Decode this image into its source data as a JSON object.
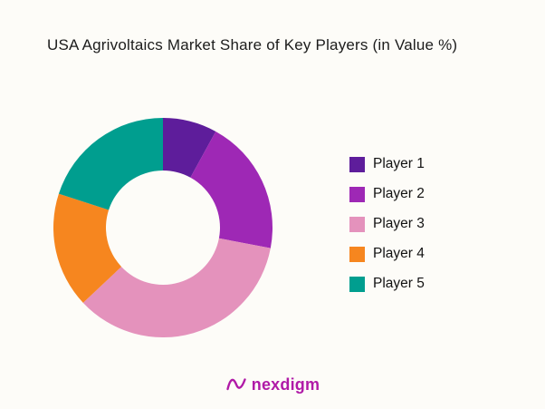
{
  "chart_data": {
    "type": "pie",
    "subtype": "donut",
    "title": "USA Agrivoltaics Market Share of Key Players (in Value %)",
    "categories": [
      "Player 1",
      "Player 2",
      "Player 3",
      "Player 4",
      "Player 5"
    ],
    "values": [
      8,
      20,
      35,
      17,
      20
    ],
    "colors": [
      "#5E1D9B",
      "#9E28B5",
      "#E492BC",
      "#F6861F",
      "#009E8F"
    ],
    "legend_position": "right",
    "start_angle_deg": 0,
    "direction": "clockwise",
    "inner_radius_ratio": 0.52,
    "data_labels": "none"
  },
  "footer": {
    "brand": "nexdigm",
    "brand_color": "#B01AA7"
  }
}
